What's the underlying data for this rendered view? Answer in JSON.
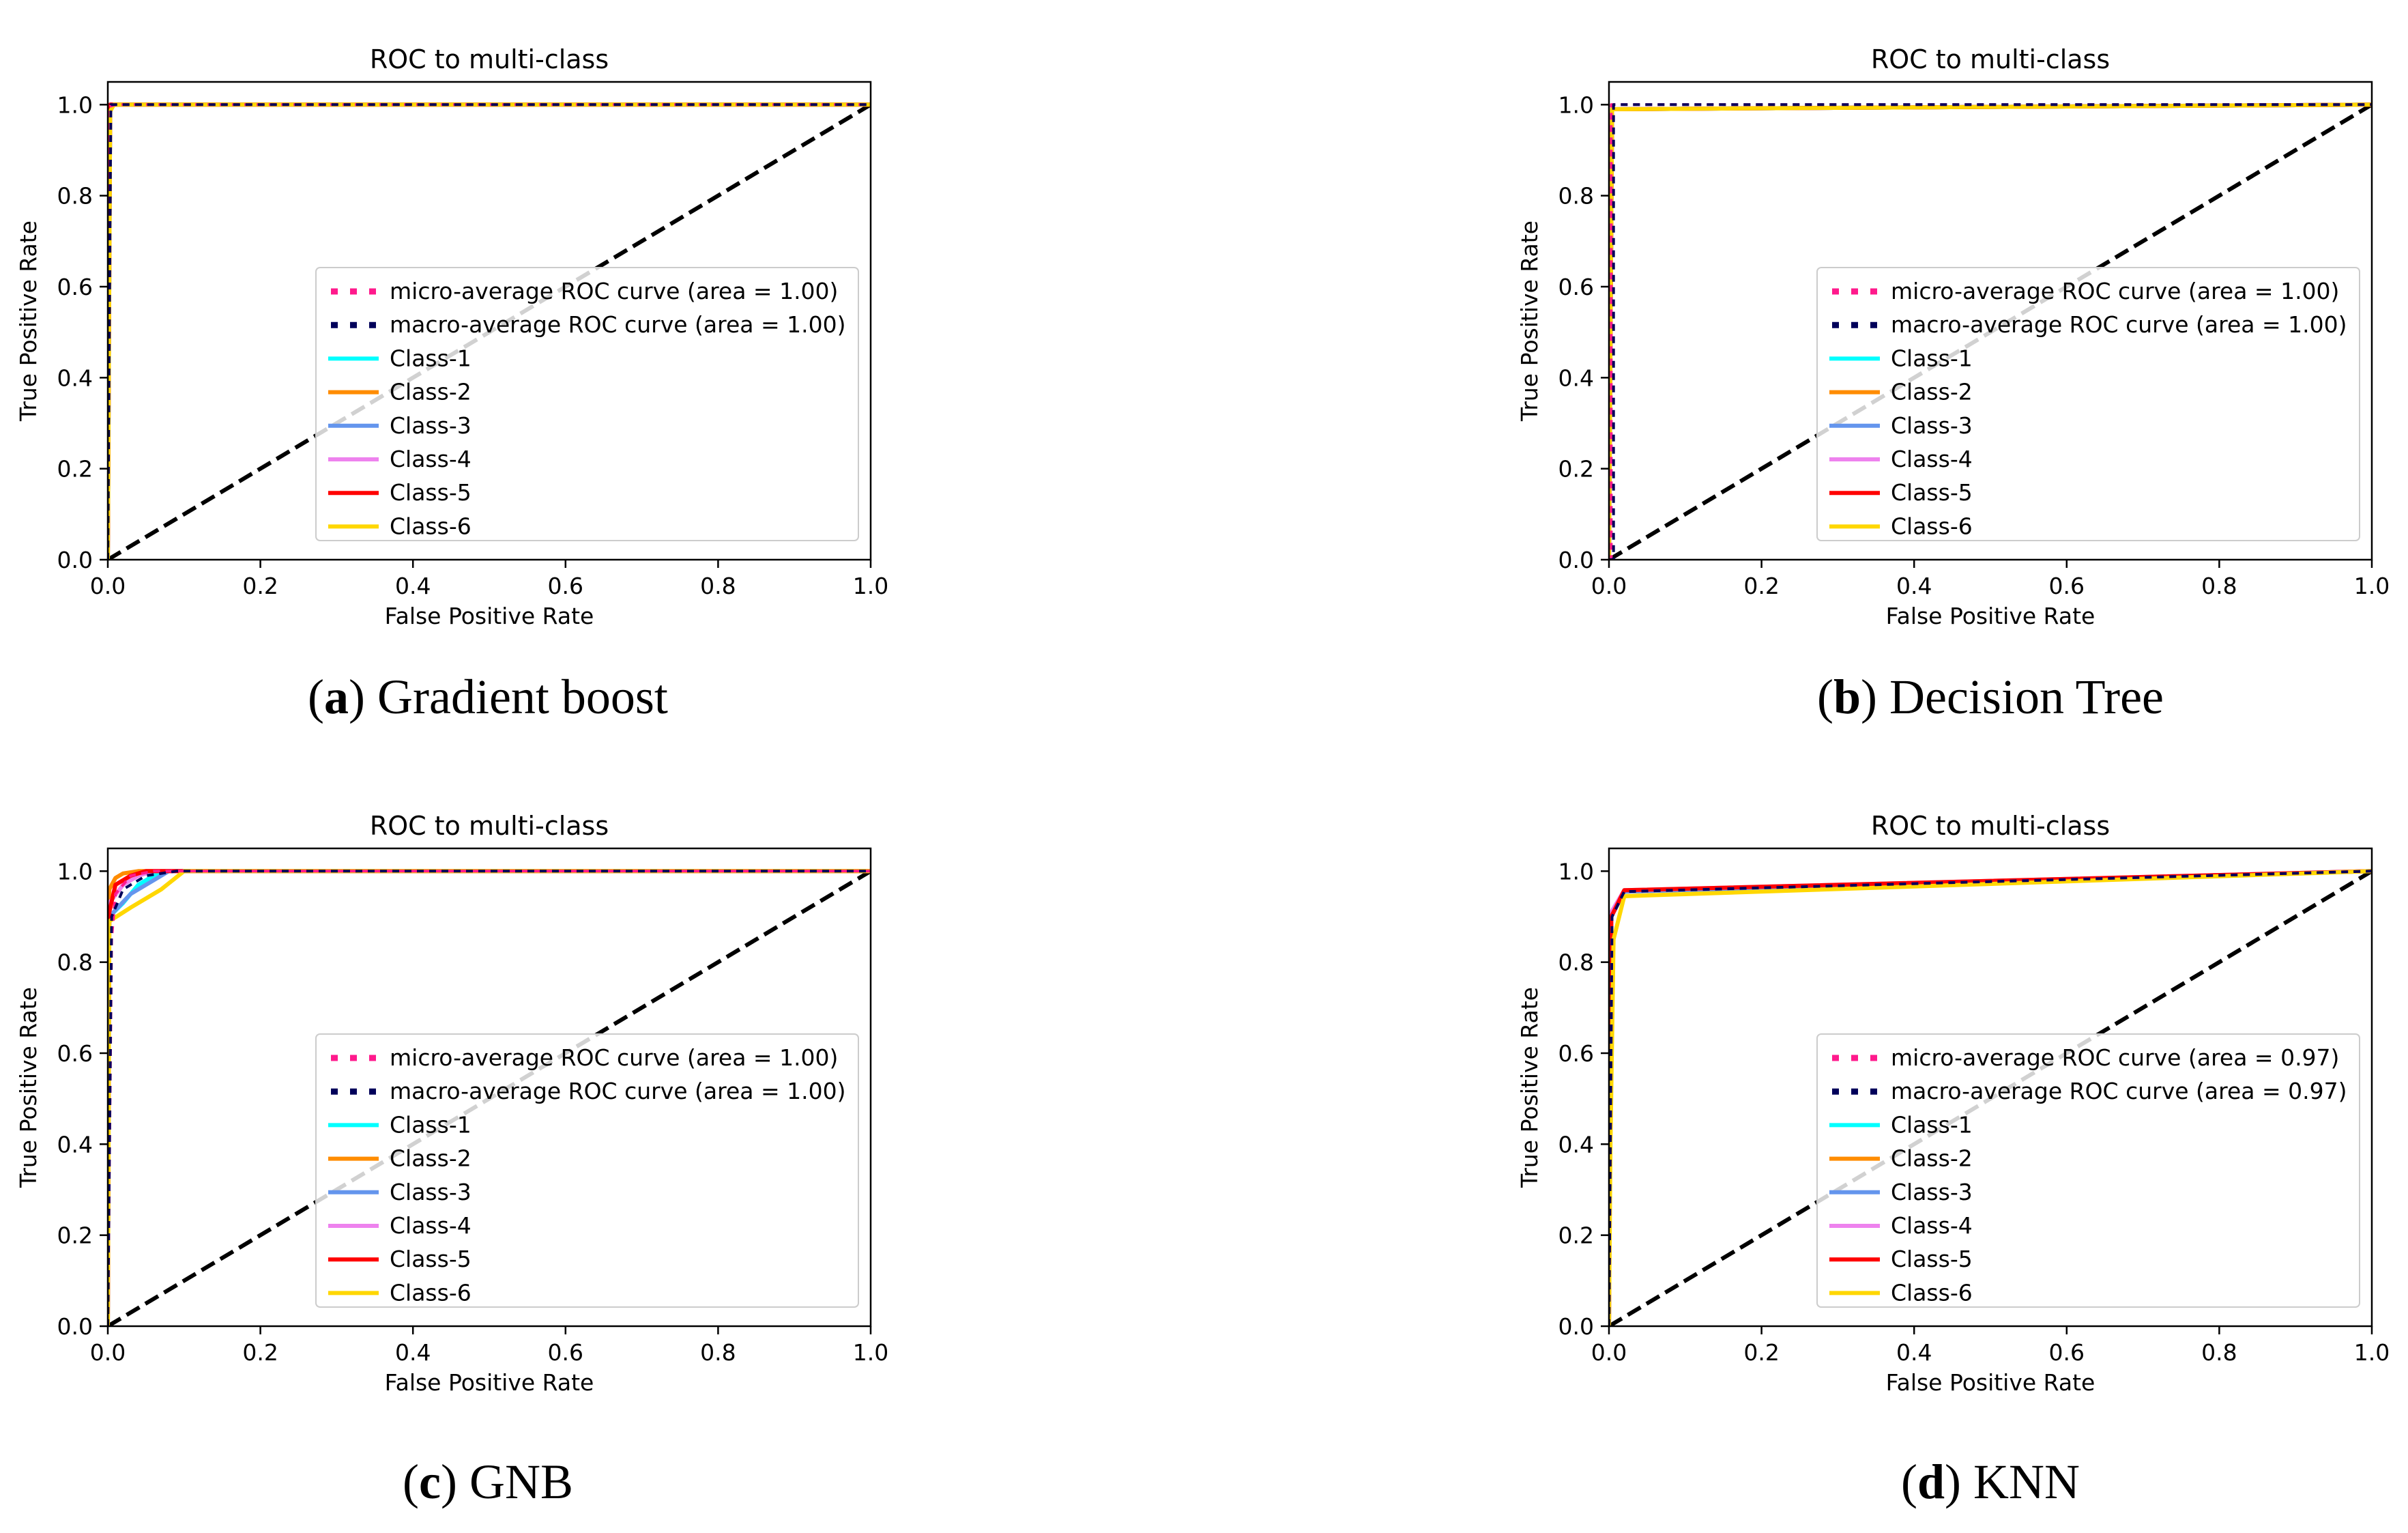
{
  "chart_data": [
    {
      "panel_letter": "a",
      "caption": "Gradient boost",
      "type": "line",
      "title": "ROC to multi-class",
      "xlabel": "False Positive Rate",
      "ylabel": "True Positive Rate",
      "xlim": [
        0.0,
        1.0
      ],
      "ylim": [
        0.0,
        1.05
      ],
      "xticks": [
        "0.0",
        "0.2",
        "0.4",
        "0.6",
        "0.8",
        "1.0"
      ],
      "yticks": [
        "0.0",
        "0.2",
        "0.4",
        "0.6",
        "0.8",
        "1.0"
      ],
      "legend_position": "center-right",
      "series": [
        {
          "name": "chance",
          "label": "",
          "color": "#000000",
          "style": "dashed",
          "x": [
            0,
            1
          ],
          "y": [
            0,
            1
          ]
        },
        {
          "name": "micro",
          "label": "micro-average ROC curve (area = 1.00)",
          "color": "#ff1a8c",
          "style": "dotted",
          "x": [
            0,
            0,
            0.01,
            1
          ],
          "y": [
            0,
            0.995,
            1.0,
            1.0
          ]
        },
        {
          "name": "macro",
          "label": "macro-average ROC curve (area = 1.00)",
          "color": "#00005a",
          "style": "dotted",
          "x": [
            0,
            0.004,
            0.01,
            1
          ],
          "y": [
            0,
            1.0,
            1.0,
            1.0
          ]
        },
        {
          "name": "class-1",
          "label": "Class-1",
          "color": "#00ffff",
          "style": "solid",
          "x": [
            0,
            0.003,
            1
          ],
          "y": [
            0,
            1.0,
            1.0
          ]
        },
        {
          "name": "class-2",
          "label": "Class-2",
          "color": "#ff8c00",
          "style": "solid",
          "x": [
            0,
            0.003,
            1
          ],
          "y": [
            0,
            1.0,
            1.0
          ]
        },
        {
          "name": "class-3",
          "label": "Class-3",
          "color": "#6495ed",
          "style": "solid",
          "x": [
            0,
            0.003,
            1
          ],
          "y": [
            0,
            1.0,
            1.0
          ]
        },
        {
          "name": "class-4",
          "label": "Class-4",
          "color": "#ee82ee",
          "style": "solid",
          "x": [
            0,
            0.003,
            1
          ],
          "y": [
            0,
            1.0,
            1.0
          ]
        },
        {
          "name": "class-5",
          "label": "Class-5",
          "color": "#ff0000",
          "style": "solid",
          "x": [
            0,
            0.003,
            1
          ],
          "y": [
            0,
            1.0,
            1.0
          ]
        },
        {
          "name": "class-6",
          "label": "Class-6",
          "color": "#ffd700",
          "style": "solid",
          "x": [
            0,
            0.003,
            0.008,
            1
          ],
          "y": [
            0,
            0.985,
            1.0,
            1.0
          ]
        }
      ]
    },
    {
      "panel_letter": "b",
      "caption": "Decision Tree",
      "type": "line",
      "title": "ROC to multi-class",
      "xlabel": "False Positive Rate",
      "ylabel": "True Positive Rate",
      "xlim": [
        0.0,
        1.0
      ],
      "ylim": [
        0.0,
        1.05
      ],
      "xticks": [
        "0.0",
        "0.2",
        "0.4",
        "0.6",
        "0.8",
        "1.0"
      ],
      "yticks": [
        "0.0",
        "0.2",
        "0.4",
        "0.6",
        "0.8",
        "1.0"
      ],
      "legend_position": "center-right",
      "series": [
        {
          "name": "chance",
          "label": "",
          "color": "#000000",
          "style": "dashed",
          "x": [
            0,
            1
          ],
          "y": [
            0,
            1
          ]
        },
        {
          "name": "micro",
          "label": "micro-average ROC curve (area = 1.00)",
          "color": "#ff1a8c",
          "style": "dotted",
          "x": [
            0,
            0.003,
            0.003,
            1
          ],
          "y": [
            0,
            0,
            1.0,
            1.0
          ]
        },
        {
          "name": "macro",
          "label": "macro-average ROC curve (area = 1.00)",
          "color": "#00005a",
          "style": "dotted",
          "x": [
            0,
            0.006,
            0.006,
            1
          ],
          "y": [
            0,
            0,
            1.0,
            1.0
          ]
        },
        {
          "name": "class-1",
          "label": "Class-1",
          "color": "#00ffff",
          "style": "solid",
          "x": [
            0,
            0.004,
            1
          ],
          "y": [
            0,
            0.99,
            1.0
          ]
        },
        {
          "name": "class-2",
          "label": "Class-2",
          "color": "#ff8c00",
          "style": "solid",
          "x": [
            0,
            0.004,
            1
          ],
          "y": [
            0,
            0.99,
            1.0
          ]
        },
        {
          "name": "class-3",
          "label": "Class-3",
          "color": "#6495ed",
          "style": "solid",
          "x": [
            0,
            0.004,
            1
          ],
          "y": [
            0,
            0.99,
            1.0
          ]
        },
        {
          "name": "class-4",
          "label": "Class-4",
          "color": "#ee82ee",
          "style": "solid",
          "x": [
            0,
            0.004,
            1
          ],
          "y": [
            0,
            0.99,
            1.0
          ]
        },
        {
          "name": "class-5",
          "label": "Class-5",
          "color": "#ff0000",
          "style": "solid",
          "x": [
            0,
            0.004,
            1
          ],
          "y": [
            0,
            0.99,
            1.0
          ]
        },
        {
          "name": "class-6",
          "label": "Class-6",
          "color": "#ffd700",
          "style": "solid",
          "x": [
            0,
            0.004,
            1
          ],
          "y": [
            0,
            0.99,
            1.0
          ]
        }
      ]
    },
    {
      "panel_letter": "c",
      "caption": "GNB",
      "type": "line",
      "title": "ROC to multi-class",
      "xlabel": "False Positive Rate",
      "ylabel": "True Positive Rate",
      "xlim": [
        0.0,
        1.0
      ],
      "ylim": [
        0.0,
        1.05
      ],
      "xticks": [
        "0.0",
        "0.2",
        "0.4",
        "0.6",
        "0.8",
        "1.0"
      ],
      "yticks": [
        "0.0",
        "0.2",
        "0.4",
        "0.6",
        "0.8",
        "1.0"
      ],
      "legend_position": "center-right",
      "series": [
        {
          "name": "chance",
          "label": "",
          "color": "#000000",
          "style": "dashed",
          "x": [
            0,
            1
          ],
          "y": [
            0,
            1
          ]
        },
        {
          "name": "micro",
          "label": "micro-average ROC curve (area = 1.00)",
          "color": "#ff1a8c",
          "style": "dotted",
          "x": [
            0,
            0.005,
            0.01,
            0.03,
            0.06,
            1
          ],
          "y": [
            0,
            0.85,
            0.95,
            0.99,
            1.0,
            1.0
          ]
        },
        {
          "name": "macro",
          "label": "macro-average ROC curve (area = 1.00)",
          "color": "#00005a",
          "style": "dotted",
          "x": [
            0,
            0.005,
            0.02,
            0.05,
            0.09,
            1
          ],
          "y": [
            0,
            0.9,
            0.96,
            0.99,
            1.0,
            1.0
          ]
        },
        {
          "name": "class-1",
          "label": "Class-1",
          "color": "#00ffff",
          "style": "solid",
          "x": [
            0,
            0.002,
            0.02,
            0.04,
            0.07,
            1
          ],
          "y": [
            0,
            0.9,
            0.93,
            0.97,
            1.0,
            1.0
          ]
        },
        {
          "name": "class-2",
          "label": "Class-2",
          "color": "#ff8c00",
          "style": "solid",
          "x": [
            0,
            0.002,
            0.01,
            0.02,
            0.04,
            1
          ],
          "y": [
            0,
            0.96,
            0.985,
            0.995,
            1.0,
            1.0
          ]
        },
        {
          "name": "class-3",
          "label": "Class-3",
          "color": "#6495ed",
          "style": "solid",
          "x": [
            0,
            0.002,
            0.03,
            0.06,
            0.08,
            1
          ],
          "y": [
            0,
            0.9,
            0.95,
            0.98,
            1.0,
            1.0
          ]
        },
        {
          "name": "class-4",
          "label": "Class-4",
          "color": "#ee82ee",
          "style": "solid",
          "x": [
            0,
            0.002,
            0.02,
            0.04,
            0.06,
            1
          ],
          "y": [
            0,
            0.93,
            0.97,
            0.99,
            1.0,
            1.0
          ]
        },
        {
          "name": "class-5",
          "label": "Class-5",
          "color": "#ff0000",
          "style": "solid",
          "x": [
            0,
            0.002,
            0.01,
            0.03,
            0.05,
            1
          ],
          "y": [
            0,
            0.91,
            0.97,
            0.99,
            1.0,
            1.0
          ]
        },
        {
          "name": "class-6",
          "label": "Class-6",
          "color": "#ffd700",
          "style": "solid",
          "x": [
            0,
            0.002,
            0.03,
            0.07,
            0.1,
            1
          ],
          "y": [
            0,
            0.89,
            0.92,
            0.96,
            1.0,
            1.0
          ]
        }
      ]
    },
    {
      "panel_letter": "d",
      "caption": "KNN",
      "type": "line",
      "title": "ROC to multi-class",
      "xlabel": "False Positive Rate",
      "ylabel": "True Positive Rate",
      "xlim": [
        0.0,
        1.0
      ],
      "ylim": [
        0.0,
        1.05
      ],
      "xticks": [
        "0.0",
        "0.2",
        "0.4",
        "0.6",
        "0.8",
        "1.0"
      ],
      "yticks": [
        "0.0",
        "0.2",
        "0.4",
        "0.6",
        "0.8",
        "1.0"
      ],
      "legend_position": "center-right",
      "series": [
        {
          "name": "chance",
          "label": "",
          "color": "#000000",
          "style": "dashed",
          "x": [
            0,
            1
          ],
          "y": [
            0,
            1
          ]
        },
        {
          "name": "micro",
          "label": "micro-average ROC curve (area = 0.97)",
          "color": "#ff1a8c",
          "style": "dotted",
          "x": [
            0,
            0.004,
            0.02,
            1
          ],
          "y": [
            0,
            0.9,
            0.955,
            1.0
          ]
        },
        {
          "name": "macro",
          "label": "macro-average ROC curve (area = 0.97)",
          "color": "#00005a",
          "style": "dotted",
          "x": [
            0,
            0.004,
            0.02,
            1
          ],
          "y": [
            0,
            0.9,
            0.955,
            1.0
          ]
        },
        {
          "name": "class-1",
          "label": "Class-1",
          "color": "#00ffff",
          "style": "solid",
          "x": [
            0,
            0.003,
            0.02,
            1
          ],
          "y": [
            0,
            0.9,
            0.955,
            1.0
          ]
        },
        {
          "name": "class-2",
          "label": "Class-2",
          "color": "#ff8c00",
          "style": "solid",
          "x": [
            0,
            0.003,
            0.02,
            1
          ],
          "y": [
            0,
            0.9,
            0.955,
            1.0
          ]
        },
        {
          "name": "class-3",
          "label": "Class-3",
          "color": "#6495ed",
          "style": "solid",
          "x": [
            0,
            0.003,
            0.02,
            1
          ],
          "y": [
            0,
            0.9,
            0.955,
            1.0
          ]
        },
        {
          "name": "class-4",
          "label": "Class-4",
          "color": "#ee82ee",
          "style": "solid",
          "x": [
            0,
            0.003,
            0.02,
            1
          ],
          "y": [
            0,
            0.91,
            0.958,
            1.0
          ]
        },
        {
          "name": "class-5",
          "label": "Class-5",
          "color": "#ff0000",
          "style": "solid",
          "x": [
            0,
            0.003,
            0.02,
            1
          ],
          "y": [
            0,
            0.9,
            0.958,
            1.0
          ]
        },
        {
          "name": "class-6",
          "label": "Class-6",
          "color": "#ffd700",
          "style": "solid",
          "x": [
            0,
            0.002,
            0.006,
            0.02,
            1
          ],
          "y": [
            0,
            0.4,
            0.85,
            0.945,
            1.0
          ]
        }
      ]
    }
  ]
}
